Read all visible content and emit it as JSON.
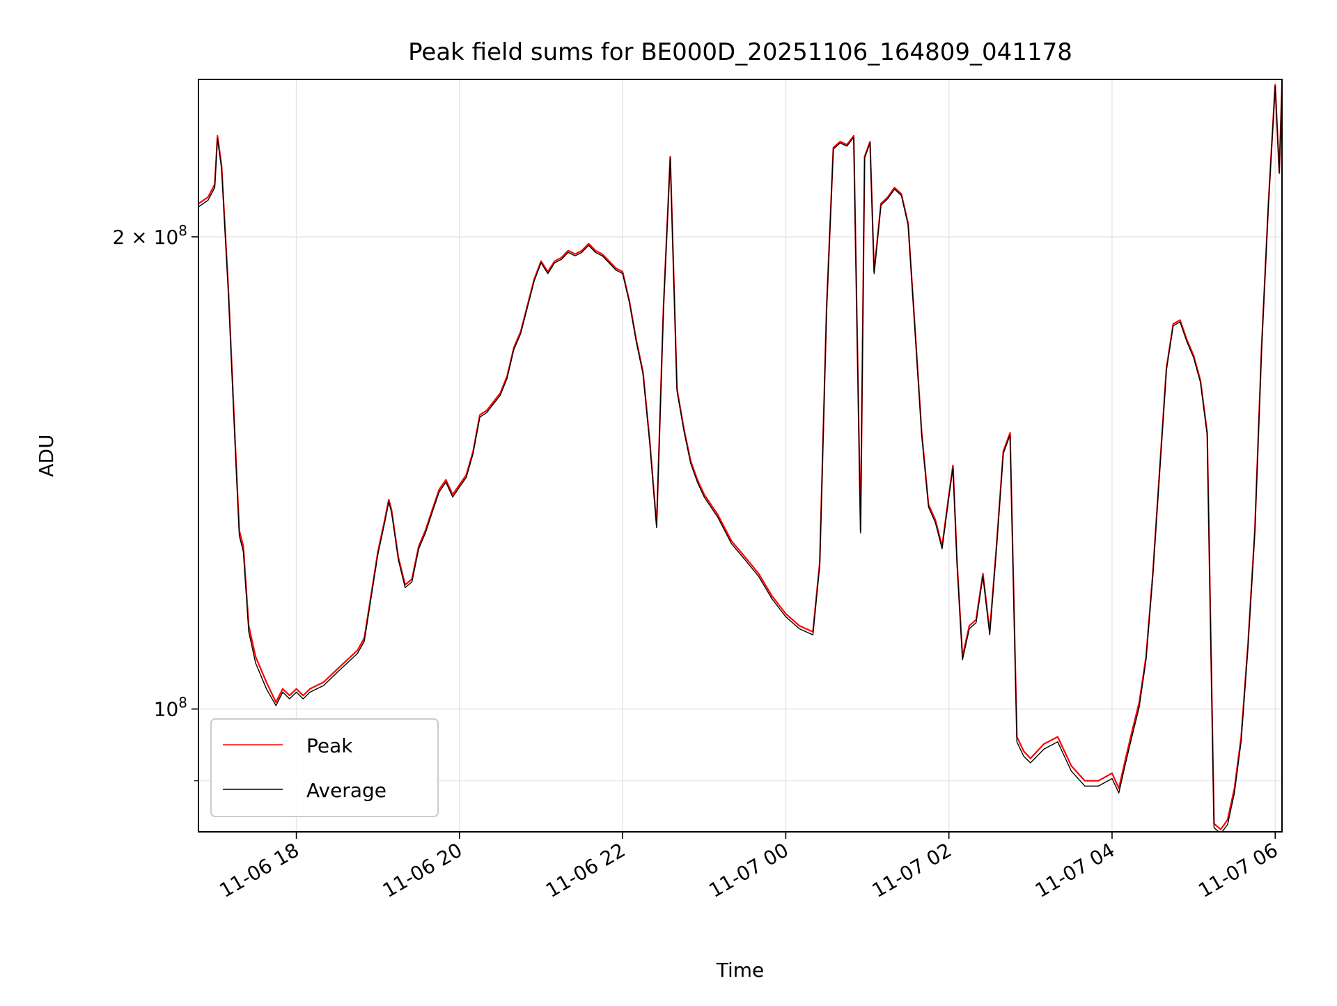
{
  "chart_data": {
    "type": "line",
    "title": "Peak field sums for BE000D_20251106_164809_041178",
    "xlabel": "Time",
    "ylabel": "ADU",
    "x_type": "datetime",
    "y_scale": "log",
    "xlim": [
      "2025-11-06T16:48",
      "2025-11-07T06:05"
    ],
    "ylim": [
      83500000,
      252000000
    ],
    "grid": true,
    "legend_position": "lower-left",
    "x_ticks": [
      {
        "value": "2025-11-06T18:00",
        "label": "11-06 18"
      },
      {
        "value": "2025-11-06T20:00",
        "label": "11-06 20"
      },
      {
        "value": "2025-11-06T22:00",
        "label": "11-06 22"
      },
      {
        "value": "2025-11-07T00:00",
        "label": "11-07 00"
      },
      {
        "value": "2025-11-07T02:00",
        "label": "11-07 02"
      },
      {
        "value": "2025-11-07T04:00",
        "label": "11-07 04"
      },
      {
        "value": "2025-11-07T06:00",
        "label": "11-07 06"
      }
    ],
    "y_major_ticks": [
      {
        "value": 100000000,
        "base": "10",
        "exp": "8",
        "coef": ""
      },
      {
        "value": 200000000,
        "base": "10",
        "exp": "8",
        "coef": "2 × "
      }
    ],
    "y_minor_ticks": [
      90000000
    ],
    "series": [
      {
        "name": "Peak",
        "color": "#ff0000",
        "x": [
          "2025-11-06T16:48",
          "2025-11-06T16:55",
          "2025-11-06T17:00",
          "2025-11-06T17:02",
          "2025-11-06T17:05",
          "2025-11-06T17:10",
          "2025-11-06T17:15",
          "2025-11-06T17:18",
          "2025-11-06T17:21",
          "2025-11-06T17:25",
          "2025-11-06T17:30",
          "2025-11-06T17:38",
          "2025-11-06T17:45",
          "2025-11-06T17:50",
          "2025-11-06T17:55",
          "2025-11-06T18:00",
          "2025-11-06T18:05",
          "2025-11-06T18:10",
          "2025-11-06T18:20",
          "2025-11-06T18:30",
          "2025-11-06T18:40",
          "2025-11-06T18:45",
          "2025-11-06T18:50",
          "2025-11-06T19:00",
          "2025-11-06T19:05",
          "2025-11-06T19:08",
          "2025-11-06T19:10",
          "2025-11-06T19:15",
          "2025-11-06T19:20",
          "2025-11-06T19:25",
          "2025-11-06T19:30",
          "2025-11-06T19:35",
          "2025-11-06T19:40",
          "2025-11-06T19:45",
          "2025-11-06T19:50",
          "2025-11-06T19:55",
          "2025-11-06T20:00",
          "2025-11-06T20:05",
          "2025-11-06T20:10",
          "2025-11-06T20:15",
          "2025-11-06T20:20",
          "2025-11-06T20:25",
          "2025-11-06T20:30",
          "2025-11-06T20:35",
          "2025-11-06T20:40",
          "2025-11-06T20:45",
          "2025-11-06T20:55",
          "2025-11-06T21:00",
          "2025-11-06T21:05",
          "2025-11-06T21:10",
          "2025-11-06T21:15",
          "2025-11-06T21:20",
          "2025-11-06T21:25",
          "2025-11-06T21:30",
          "2025-11-06T21:35",
          "2025-11-06T21:40",
          "2025-11-06T21:45",
          "2025-11-06T21:50",
          "2025-11-06T21:55",
          "2025-11-06T22:00",
          "2025-11-06T22:05",
          "2025-11-06T22:10",
          "2025-11-06T22:15",
          "2025-11-06T22:20",
          "2025-11-06T22:25",
          "2025-11-06T22:30",
          "2025-11-06T22:35",
          "2025-11-06T22:40",
          "2025-11-06T22:45",
          "2025-11-06T22:50",
          "2025-11-06T22:55",
          "2025-11-06T23:00",
          "2025-11-06T23:10",
          "2025-11-06T23:20",
          "2025-11-06T23:30",
          "2025-11-06T23:40",
          "2025-11-06T23:50",
          "2025-11-07T00:00",
          "2025-11-07T00:10",
          "2025-11-07T00:20",
          "2025-11-07T00:25",
          "2025-11-07T00:30",
          "2025-11-07T00:35",
          "2025-11-07T00:40",
          "2025-11-07T00:45",
          "2025-11-07T00:50",
          "2025-11-07T00:55",
          "2025-11-07T00:58",
          "2025-11-07T01:02",
          "2025-11-07T01:05",
          "2025-11-07T01:10",
          "2025-11-07T01:15",
          "2025-11-07T01:20",
          "2025-11-07T01:25",
          "2025-11-07T01:30",
          "2025-11-07T01:35",
          "2025-11-07T01:40",
          "2025-11-07T01:45",
          "2025-11-07T01:50",
          "2025-11-07T01:55",
          "2025-11-07T02:00",
          "2025-11-07T02:03",
          "2025-11-07T02:06",
          "2025-11-07T02:10",
          "2025-11-07T02:15",
          "2025-11-07T02:20",
          "2025-11-07T02:25",
          "2025-11-07T02:30",
          "2025-11-07T02:35",
          "2025-11-07T02:40",
          "2025-11-07T02:45",
          "2025-11-07T02:50",
          "2025-11-07T02:55",
          "2025-11-07T03:00",
          "2025-11-07T03:10",
          "2025-11-07T03:20",
          "2025-11-07T03:30",
          "2025-11-07T03:40",
          "2025-11-07T03:50",
          "2025-11-07T04:00",
          "2025-11-07T04:05",
          "2025-11-07T04:10",
          "2025-11-07T04:15",
          "2025-11-07T04:20",
          "2025-11-07T04:25",
          "2025-11-07T04:30",
          "2025-11-07T04:35",
          "2025-11-07T04:40",
          "2025-11-07T04:45",
          "2025-11-07T04:50",
          "2025-11-07T04:55",
          "2025-11-07T05:00",
          "2025-11-07T05:05",
          "2025-11-07T05:10",
          "2025-11-07T05:15",
          "2025-11-07T05:20",
          "2025-11-07T05:25",
          "2025-11-07T05:30",
          "2025-11-07T05:35",
          "2025-11-07T05:40",
          "2025-11-07T05:45",
          "2025-11-07T05:50",
          "2025-11-07T05:55",
          "2025-11-07T06:00",
          "2025-11-07T06:03",
          "2025-11-07T06:05"
        ],
        "y": [
          210000000,
          212000000,
          216000000,
          232000000,
          222000000,
          185000000,
          148000000,
          130000000,
          127000000,
          113000000,
          108000000,
          104000000,
          101000000,
          103000000,
          102000000,
          103000000,
          102000000,
          103000000,
          104000000,
          106000000,
          108000000,
          109000000,
          111000000,
          126000000,
          132000000,
          136000000,
          134000000,
          125000000,
          120000000,
          121000000,
          127000000,
          130000000,
          134000000,
          138000000,
          140000000,
          137000000,
          139000000,
          141000000,
          146000000,
          154000000,
          155000000,
          157000000,
          159000000,
          163000000,
          170000000,
          174000000,
          188000000,
          193000000,
          190000000,
          193000000,
          194000000,
          196000000,
          195000000,
          196000000,
          198000000,
          196000000,
          195000000,
          193000000,
          191000000,
          190000000,
          182000000,
          172000000,
          164000000,
          148000000,
          131000000,
          180000000,
          225000000,
          160000000,
          151000000,
          144000000,
          140000000,
          137000000,
          133000000,
          128000000,
          125000000,
          122000000,
          118000000,
          115000000,
          113000000,
          112000000,
          124000000,
          180000000,
          228000000,
          230000000,
          229000000,
          232000000,
          130000000,
          225000000,
          230000000,
          190000000,
          210000000,
          212000000,
          215000000,
          213000000,
          204000000,
          175000000,
          150000000,
          135000000,
          132000000,
          127000000,
          137000000,
          143000000,
          124000000,
          108000000,
          113000000,
          114000000,
          122000000,
          112000000,
          127000000,
          146000000,
          150000000,
          96000000,
          94000000,
          93000000,
          95000000,
          96000000,
          92000000,
          90000000,
          90000000,
          91000000,
          89000000,
          93000000,
          97000000,
          101000000,
          108000000,
          122000000,
          142000000,
          165000000,
          176000000,
          177000000,
          172000000,
          168000000,
          162000000,
          150000000,
          84500000,
          83800000,
          85000000,
          89000000,
          96000000,
          110000000,
          130000000,
          170000000,
          210000000,
          250000000,
          220000000,
          250000000
        ]
      },
      {
        "name": "Average",
        "color": "#000000",
        "x": [
          "2025-11-06T16:48",
          "2025-11-06T16:55",
          "2025-11-06T17:00",
          "2025-11-06T17:02",
          "2025-11-06T17:05",
          "2025-11-06T17:10",
          "2025-11-06T17:15",
          "2025-11-06T17:18",
          "2025-11-06T17:21",
          "2025-11-06T17:25",
          "2025-11-06T17:30",
          "2025-11-06T17:38",
          "2025-11-06T17:45",
          "2025-11-06T17:50",
          "2025-11-06T17:55",
          "2025-11-06T18:00",
          "2025-11-06T18:05",
          "2025-11-06T18:10",
          "2025-11-06T18:20",
          "2025-11-06T18:30",
          "2025-11-06T18:40",
          "2025-11-06T18:45",
          "2025-11-06T18:50",
          "2025-11-06T19:00",
          "2025-11-06T19:05",
          "2025-11-06T19:08",
          "2025-11-06T19:10",
          "2025-11-06T19:15",
          "2025-11-06T19:20",
          "2025-11-06T19:25",
          "2025-11-06T19:30",
          "2025-11-06T19:35",
          "2025-11-06T19:40",
          "2025-11-06T19:45",
          "2025-11-06T19:50",
          "2025-11-06T19:55",
          "2025-11-06T20:00",
          "2025-11-06T20:05",
          "2025-11-06T20:10",
          "2025-11-06T20:15",
          "2025-11-06T20:20",
          "2025-11-06T20:25",
          "2025-11-06T20:30",
          "2025-11-06T20:35",
          "2025-11-06T20:40",
          "2025-11-06T20:45",
          "2025-11-06T20:55",
          "2025-11-06T21:00",
          "2025-11-06T21:05",
          "2025-11-06T21:10",
          "2025-11-06T21:15",
          "2025-11-06T21:20",
          "2025-11-06T21:25",
          "2025-11-06T21:30",
          "2025-11-06T21:35",
          "2025-11-06T21:40",
          "2025-11-06T21:45",
          "2025-11-06T21:50",
          "2025-11-06T21:55",
          "2025-11-06T22:00",
          "2025-11-06T22:05",
          "2025-11-06T22:10",
          "2025-11-06T22:15",
          "2025-11-06T22:20",
          "2025-11-06T22:25",
          "2025-11-06T22:30",
          "2025-11-06T22:35",
          "2025-11-06T22:40",
          "2025-11-06T22:45",
          "2025-11-06T22:50",
          "2025-11-06T22:55",
          "2025-11-06T23:00",
          "2025-11-06T23:10",
          "2025-11-06T23:20",
          "2025-11-06T23:30",
          "2025-11-06T23:40",
          "2025-11-06T23:50",
          "2025-11-07T00:00",
          "2025-11-07T00:10",
          "2025-11-07T00:20",
          "2025-11-07T00:25",
          "2025-11-07T00:30",
          "2025-11-07T00:35",
          "2025-11-07T00:40",
          "2025-11-07T00:45",
          "2025-11-07T00:50",
          "2025-11-07T00:55",
          "2025-11-07T00:58",
          "2025-11-07T01:02",
          "2025-11-07T01:05",
          "2025-11-07T01:10",
          "2025-11-07T01:15",
          "2025-11-07T01:20",
          "2025-11-07T01:25",
          "2025-11-07T01:30",
          "2025-11-07T01:35",
          "2025-11-07T01:40",
          "2025-11-07T01:45",
          "2025-11-07T01:50",
          "2025-11-07T01:55",
          "2025-11-07T02:00",
          "2025-11-07T02:03",
          "2025-11-07T02:06",
          "2025-11-07T02:10",
          "2025-11-07T02:15",
          "2025-11-07T02:20",
          "2025-11-07T02:25",
          "2025-11-07T02:30",
          "2025-11-07T02:35",
          "2025-11-07T02:40",
          "2025-11-07T02:45",
          "2025-11-07T02:50",
          "2025-11-07T02:55",
          "2025-11-07T03:00",
          "2025-11-07T03:10",
          "2025-11-07T03:20",
          "2025-11-07T03:30",
          "2025-11-07T03:40",
          "2025-11-07T03:50",
          "2025-11-07T04:00",
          "2025-11-07T04:05",
          "2025-11-07T04:10",
          "2025-11-07T04:15",
          "2025-11-07T04:20",
          "2025-11-07T04:25",
          "2025-11-07T04:30",
          "2025-11-07T04:35",
          "2025-11-07T04:40",
          "2025-11-07T04:45",
          "2025-11-07T04:50",
          "2025-11-07T04:55",
          "2025-11-07T05:00",
          "2025-11-07T05:05",
          "2025-11-07T05:10",
          "2025-11-07T05:15",
          "2025-11-07T05:20",
          "2025-11-07T05:25",
          "2025-11-07T05:30",
          "2025-11-07T05:35",
          "2025-11-07T05:40",
          "2025-11-07T05:45",
          "2025-11-07T05:50",
          "2025-11-07T05:55",
          "2025-11-07T06:00",
          "2025-11-07T06:03",
          "2025-11-07T06:05"
        ],
        "y": [
          209000000,
          211000000,
          215000000,
          231000000,
          221000000,
          184000000,
          147000000,
          129000000,
          126000000,
          112000000,
          107000000,
          103000000,
          100500000,
          102500000,
          101500000,
          102500000,
          101500000,
          102500000,
          103500000,
          105500000,
          107500000,
          108500000,
          110500000,
          125500000,
          131500000,
          135500000,
          133500000,
          124500000,
          119500000,
          120500000,
          126500000,
          129500000,
          133500000,
          137500000,
          139500000,
          136500000,
          138500000,
          140500000,
          145500000,
          153500000,
          154500000,
          156500000,
          158500000,
          162500000,
          169500000,
          173500000,
          187500000,
          192500000,
          189500000,
          192500000,
          193500000,
          195500000,
          194500000,
          195500000,
          197500000,
          195500000,
          194500000,
          192500000,
          190500000,
          189500000,
          181500000,
          171500000,
          163500000,
          147500000,
          130500000,
          179500000,
          224500000,
          159500000,
          150500000,
          143500000,
          139500000,
          136500000,
          132500000,
          127500000,
          124500000,
          121500000,
          117500000,
          114500000,
          112500000,
          111500000,
          123500000,
          179500000,
          227500000,
          229500000,
          228500000,
          231500000,
          129500000,
          224500000,
          229500000,
          189500000,
          209500000,
          211500000,
          214500000,
          212500000,
          203500000,
          174500000,
          149500000,
          134500000,
          131500000,
          126500000,
          136500000,
          142500000,
          123500000,
          107500000,
          112500000,
          113500000,
          121500000,
          111500000,
          126500000,
          145500000,
          149500000,
          95300000,
          93300000,
          92400000,
          94300000,
          95300000,
          91300000,
          89300000,
          89300000,
          90300000,
          88400000,
          92400000,
          96300000,
          100300000,
          107500000,
          121500000,
          141500000,
          164500000,
          175500000,
          176500000,
          171500000,
          167500000,
          161500000,
          149500000,
          84000000,
          83300000,
          84400000,
          88400000,
          95400000,
          109500000,
          129500000,
          169500000,
          209500000,
          249500000,
          219500000,
          249500000
        ]
      }
    ]
  }
}
